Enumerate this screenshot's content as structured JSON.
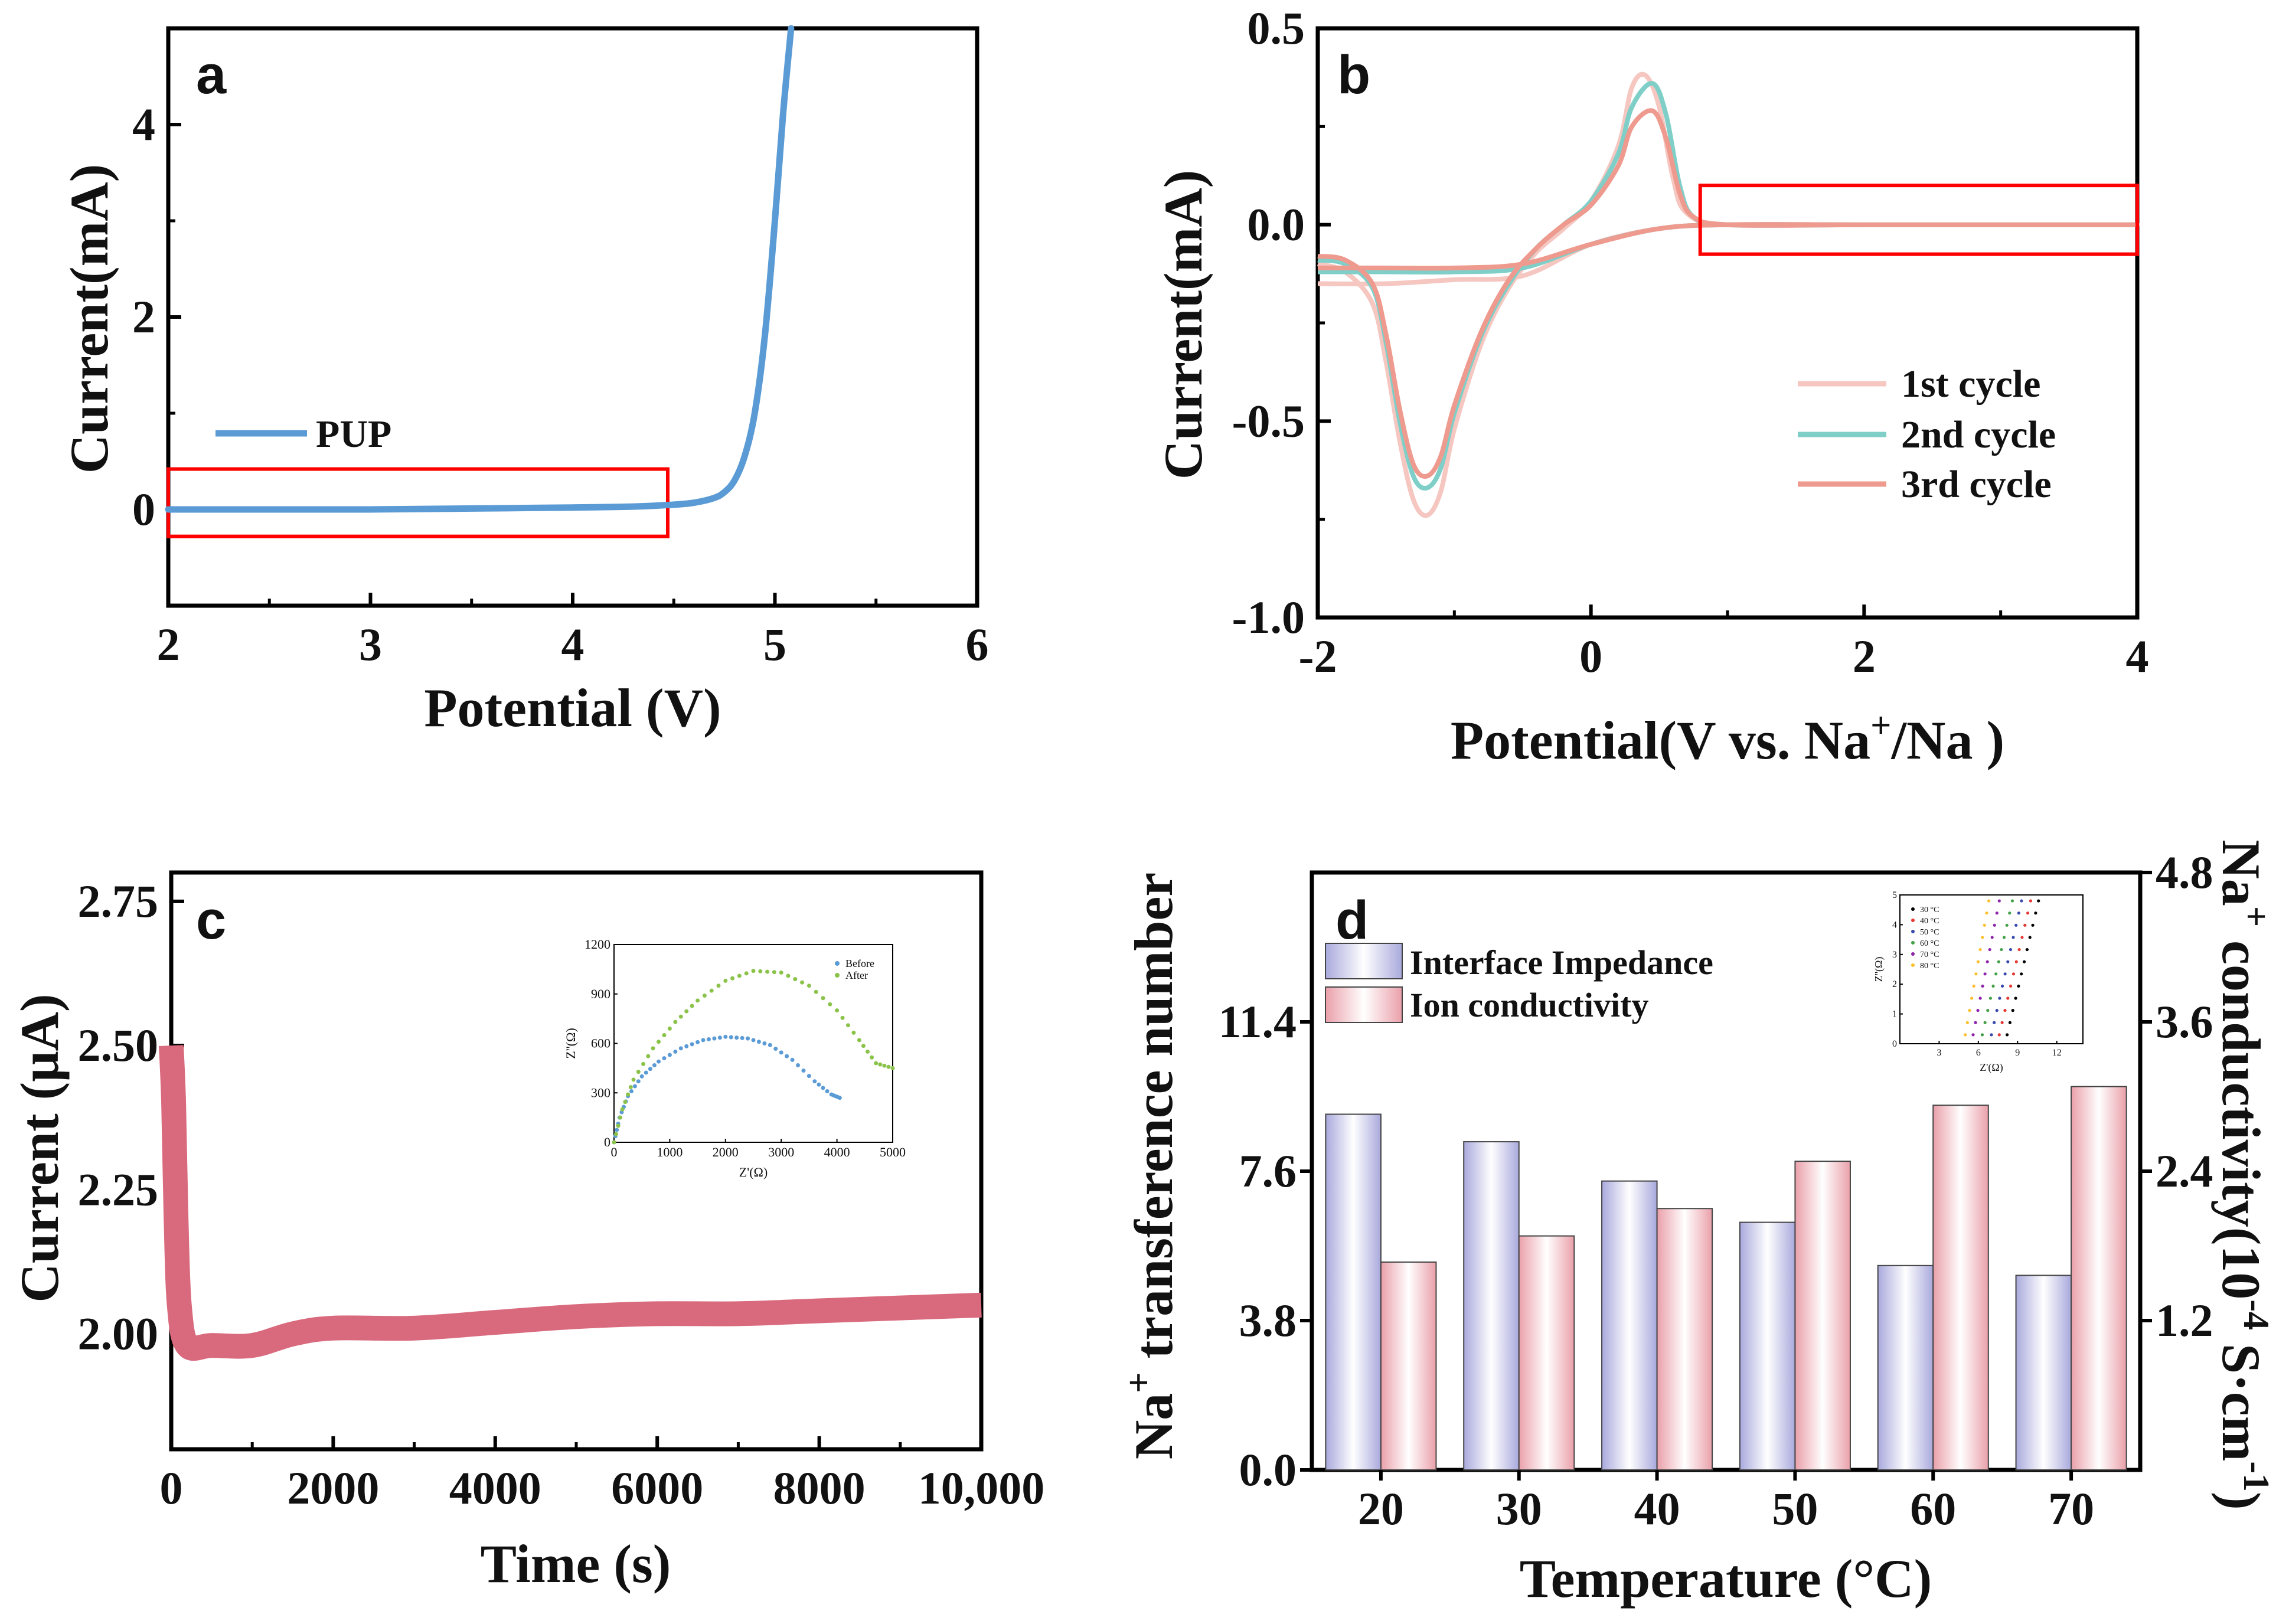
{
  "chart_data": [
    {
      "panel": "a",
      "type": "line",
      "xlabel": "Potential (V)",
      "ylabel": "Current(mA)",
      "xlim": [
        2,
        6
      ],
      "ylim": [
        -1,
        5
      ],
      "xticks": [
        "2",
        "3",
        "4",
        "5",
        "6"
      ],
      "yticks": [
        "0",
        "2",
        "4"
      ],
      "legend": [
        "PUP"
      ],
      "colors": {
        "PUP": "#5b9bd5",
        "highlight": "#ff0000"
      },
      "series": [
        {
          "name": "PUP",
          "x": [
            2.0,
            2.5,
            3.0,
            3.5,
            4.0,
            4.3,
            4.5,
            4.6,
            4.7,
            4.75,
            4.8,
            4.85,
            4.9,
            4.95,
            5.0,
            5.04,
            5.08
          ],
          "y": [
            0.0,
            0.0,
            0.0,
            0.01,
            0.02,
            0.03,
            0.05,
            0.07,
            0.12,
            0.18,
            0.3,
            0.55,
            1.0,
            1.8,
            3.0,
            4.1,
            5.0
          ]
        }
      ],
      "highlight_box": {
        "x": [
          2.0,
          4.47
        ],
        "y": [
          -0.28,
          0.42
        ]
      }
    },
    {
      "panel": "b",
      "type": "line",
      "xlabel": "Potential(V vs. Na",
      "xlabel_sup": "+",
      "xlabel_end": "/Na )",
      "ylabel": "Current(mA)",
      "xlim": [
        -2,
        4
      ],
      "ylim": [
        -1.0,
        0.5
      ],
      "xticks": [
        "-2",
        "0",
        "2",
        "4"
      ],
      "yticks": [
        "-1.0",
        "-0.5",
        "0.0",
        "0.5"
      ],
      "legend": [
        "1st cycle",
        "2nd cycle",
        "3rd cycle"
      ],
      "colors": {
        "1st cycle": "#f6c6c0",
        "2nd cycle": "#7fcfc8",
        "3rd cycle": "#ee9a8e",
        "highlight": "#ff0000"
      },
      "series": [
        {
          "name": "1st cycle",
          "x": [
            -2.0,
            -1.8,
            -1.6,
            -1.5,
            -1.4,
            -1.3,
            -1.2,
            -1.1,
            -1.0,
            -0.8,
            -0.6,
            -0.4,
            -0.2,
            0.0,
            0.2,
            0.3,
            0.4,
            0.5,
            0.6,
            0.7,
            1.0,
            2.0,
            3.0,
            4.0,
            3.0,
            2.0,
            1.0,
            0.5,
            0.0,
            -0.5,
            -1.0,
            -1.5,
            -2.0
          ],
          "y": [
            -0.1,
            -0.12,
            -0.2,
            -0.35,
            -0.55,
            -0.7,
            -0.74,
            -0.68,
            -0.52,
            -0.3,
            -0.16,
            -0.07,
            -0.01,
            0.06,
            0.2,
            0.35,
            0.38,
            0.3,
            0.12,
            0.03,
            0.0,
            0.0,
            0.0,
            0.0,
            0.0,
            0.0,
            0.0,
            -0.01,
            -0.05,
            -0.13,
            -0.14,
            -0.15,
            -0.15
          ]
        },
        {
          "name": "2nd cycle",
          "x": [
            -2.0,
            -1.8,
            -1.6,
            -1.5,
            -1.4,
            -1.3,
            -1.2,
            -1.1,
            -1.0,
            -0.8,
            -0.6,
            -0.4,
            -0.2,
            0.0,
            0.2,
            0.3,
            0.45,
            0.55,
            0.65,
            0.75,
            1.0,
            2.0,
            3.0,
            4.0,
            3.0,
            2.0,
            1.0,
            0.5,
            0.0,
            -0.5,
            -1.0,
            -1.5,
            -2.0
          ],
          "y": [
            -0.09,
            -0.1,
            -0.16,
            -0.3,
            -0.5,
            -0.64,
            -0.67,
            -0.62,
            -0.48,
            -0.28,
            -0.15,
            -0.06,
            0.0,
            0.06,
            0.18,
            0.3,
            0.36,
            0.28,
            0.1,
            0.02,
            0.0,
            0.0,
            0.0,
            0.0,
            0.0,
            0.0,
            0.0,
            -0.01,
            -0.05,
            -0.11,
            -0.12,
            -0.12,
            -0.12
          ]
        },
        {
          "name": "3rd cycle",
          "x": [
            -2.0,
            -1.8,
            -1.6,
            -1.5,
            -1.4,
            -1.3,
            -1.2,
            -1.1,
            -1.0,
            -0.8,
            -0.6,
            -0.4,
            -0.2,
            0.0,
            0.2,
            0.3,
            0.45,
            0.55,
            0.65,
            0.75,
            1.0,
            2.0,
            3.0,
            4.0,
            3.0,
            2.0,
            1.0,
            0.5,
            0.0,
            -0.5,
            -1.0,
            -1.5,
            -2.0
          ],
          "y": [
            -0.08,
            -0.09,
            -0.15,
            -0.28,
            -0.47,
            -0.61,
            -0.64,
            -0.59,
            -0.46,
            -0.27,
            -0.14,
            -0.06,
            0.0,
            0.05,
            0.15,
            0.25,
            0.29,
            0.22,
            0.08,
            0.02,
            0.0,
            0.0,
            0.0,
            0.0,
            0.0,
            0.0,
            0.0,
            -0.01,
            -0.05,
            -0.1,
            -0.11,
            -0.11,
            -0.11
          ]
        }
      ],
      "highlight_box": {
        "x": [
          0.8,
          4.0
        ],
        "y": [
          -0.075,
          0.1
        ]
      }
    },
    {
      "panel": "c",
      "type": "line",
      "xlabel": "Time (s)",
      "ylabel": "Current (μA)",
      "xlim": [
        0,
        10000
      ],
      "ylim": [
        1.8,
        2.8
      ],
      "xticks": [
        "0",
        "2000",
        "4000",
        "6000",
        "8000",
        "10,000"
      ],
      "yticks": [
        "2.00",
        "2.25",
        "2.50",
        "2.75"
      ],
      "colors": {
        "main": "#d96a7e"
      },
      "series": [
        {
          "name": "current",
          "x": [
            0,
            30,
            60,
            100,
            200,
            500,
            1000,
            1500,
            2000,
            3000,
            4000,
            5000,
            6000,
            7000,
            8000,
            9000,
            10000
          ],
          "y": [
            2.5,
            2.4,
            2.2,
            2.05,
            1.98,
            1.98,
            1.98,
            2.0,
            2.01,
            2.01,
            2.02,
            2.03,
            2.035,
            2.035,
            2.04,
            2.045,
            2.05
          ]
        }
      ],
      "inset": {
        "type": "scatter",
        "xlabel": "Z'(Ω)",
        "ylabel": "Z''(Ω)",
        "xlim": [
          0,
          5000
        ],
        "ylim": [
          0,
          1200
        ],
        "xticks": [
          "0",
          "1000",
          "2000",
          "3000",
          "4000",
          "5000"
        ],
        "yticks": [
          "0",
          "300",
          "600",
          "900",
          "1200"
        ],
        "legend": [
          "Before",
          "After"
        ],
        "colors": {
          "Before": "#5b9bd5",
          "After": "#8bc34a"
        },
        "series": [
          {
            "name": "Before",
            "x": [
              0,
              100,
              250,
              500,
              800,
              1200,
              1600,
              2000,
              2400,
              2800,
              3200,
              3600,
              3900,
              4050
            ],
            "y": [
              0,
              150,
              280,
              400,
              490,
              570,
              620,
              640,
              630,
              590,
              500,
              370,
              290,
              270
            ]
          },
          {
            "name": "After",
            "x": [
              0,
              150,
              350,
              700,
              1100,
              1500,
              2000,
              2500,
              3000,
              3500,
              4000,
              4400,
              4700,
              5000
            ],
            "y": [
              0,
              200,
              380,
              570,
              730,
              860,
              980,
              1040,
              1030,
              950,
              800,
              620,
              480,
              450
            ]
          }
        ]
      }
    },
    {
      "panel": "d",
      "type": "bar",
      "xlabel": "Temperature (°C)",
      "ylabel_left": "transference number",
      "ylabel_left_prefix": "Na",
      "ylabel_left_sup": "+",
      "ylabel_right": "Na",
      "ylabel_right_sup": "+",
      "ylabel_right_mid": " conductivity(10",
      "ylabel_right_sup2": "-4",
      "ylabel_right_mid2": " S·cm",
      "ylabel_right_sup3": "-1",
      "ylabel_right_end": ")",
      "categories": [
        "20",
        "30",
        "40",
        "50",
        "60",
        "70"
      ],
      "yticks_left": [
        "0.0",
        "3.8",
        "7.6",
        "11.4"
      ],
      "yticks_right": [
        "1.2",
        "2.4",
        "3.6",
        "4.8"
      ],
      "ylim_left": [
        0,
        15.2
      ],
      "ylim_right": [
        0,
        4.8
      ],
      "legend": [
        "Interface Impedance",
        "Ion conductivity"
      ],
      "colors": {
        "Interface Impedance": "#c8c8ec",
        "Ion conductivity": "#f4c2c8"
      },
      "series": [
        {
          "name": "Interface Impedance",
          "axis": "left",
          "values": [
            9.05,
            8.35,
            7.35,
            6.3,
            5.2,
            4.95
          ]
        },
        {
          "name": "Ion conductivity",
          "axis": "right",
          "values": [
            1.67,
            1.88,
            2.1,
            2.48,
            2.93,
            3.08
          ]
        }
      ],
      "inset": {
        "type": "scatter",
        "xlabel": "Z'(Ω)",
        "ylabel": "Z''(Ω)",
        "xlim": [
          0,
          14
        ],
        "ylim": [
          0,
          5
        ],
        "xticks": [
          "3",
          "6",
          "9",
          "12"
        ],
        "yticks": [
          "0",
          "1",
          "2",
          "3",
          "4",
          "5"
        ],
        "legend": [
          "30 °C",
          "40 °C",
          "50 °C",
          "60 °C",
          "70 °C",
          "80 °C"
        ],
        "colors": {
          "30 °C": "#000000",
          "40 °C": "#e53935",
          "50 °C": "#3949ab",
          "60 °C": "#43a047",
          "70 °C": "#8e24aa",
          "80 °C": "#fbc02d"
        },
        "series": [
          {
            "name": "30 °C",
            "x0": 8.2,
            "x1": 10.6
          },
          {
            "name": "40 °C",
            "x0": 7.6,
            "x1": 10.0
          },
          {
            "name": "50 °C",
            "x0": 7.0,
            "x1": 9.3
          },
          {
            "name": "60 °C",
            "x0": 6.3,
            "x1": 8.6
          },
          {
            "name": "70 °C",
            "x0": 5.6,
            "x1": 7.6
          },
          {
            "name": "80 °C",
            "x0": 5.0,
            "x1": 6.8
          }
        ]
      }
    }
  ],
  "panel_labels": [
    "a",
    "b",
    "c",
    "d"
  ]
}
